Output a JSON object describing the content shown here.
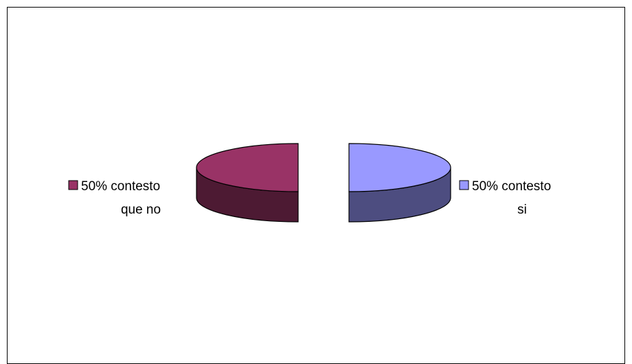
{
  "chart_data": {
    "type": "pie",
    "style": "3d-exploded",
    "slices": [
      {
        "label_line1": "50% contesto",
        "label_line2": "que no",
        "value": 50,
        "color": "#993366",
        "side_color": "#4d1a33"
      },
      {
        "label_line1": "50% contesto",
        "label_line2": "si",
        "value": 50,
        "color": "#9999ff",
        "side_color": "#4d4d80"
      }
    ]
  }
}
